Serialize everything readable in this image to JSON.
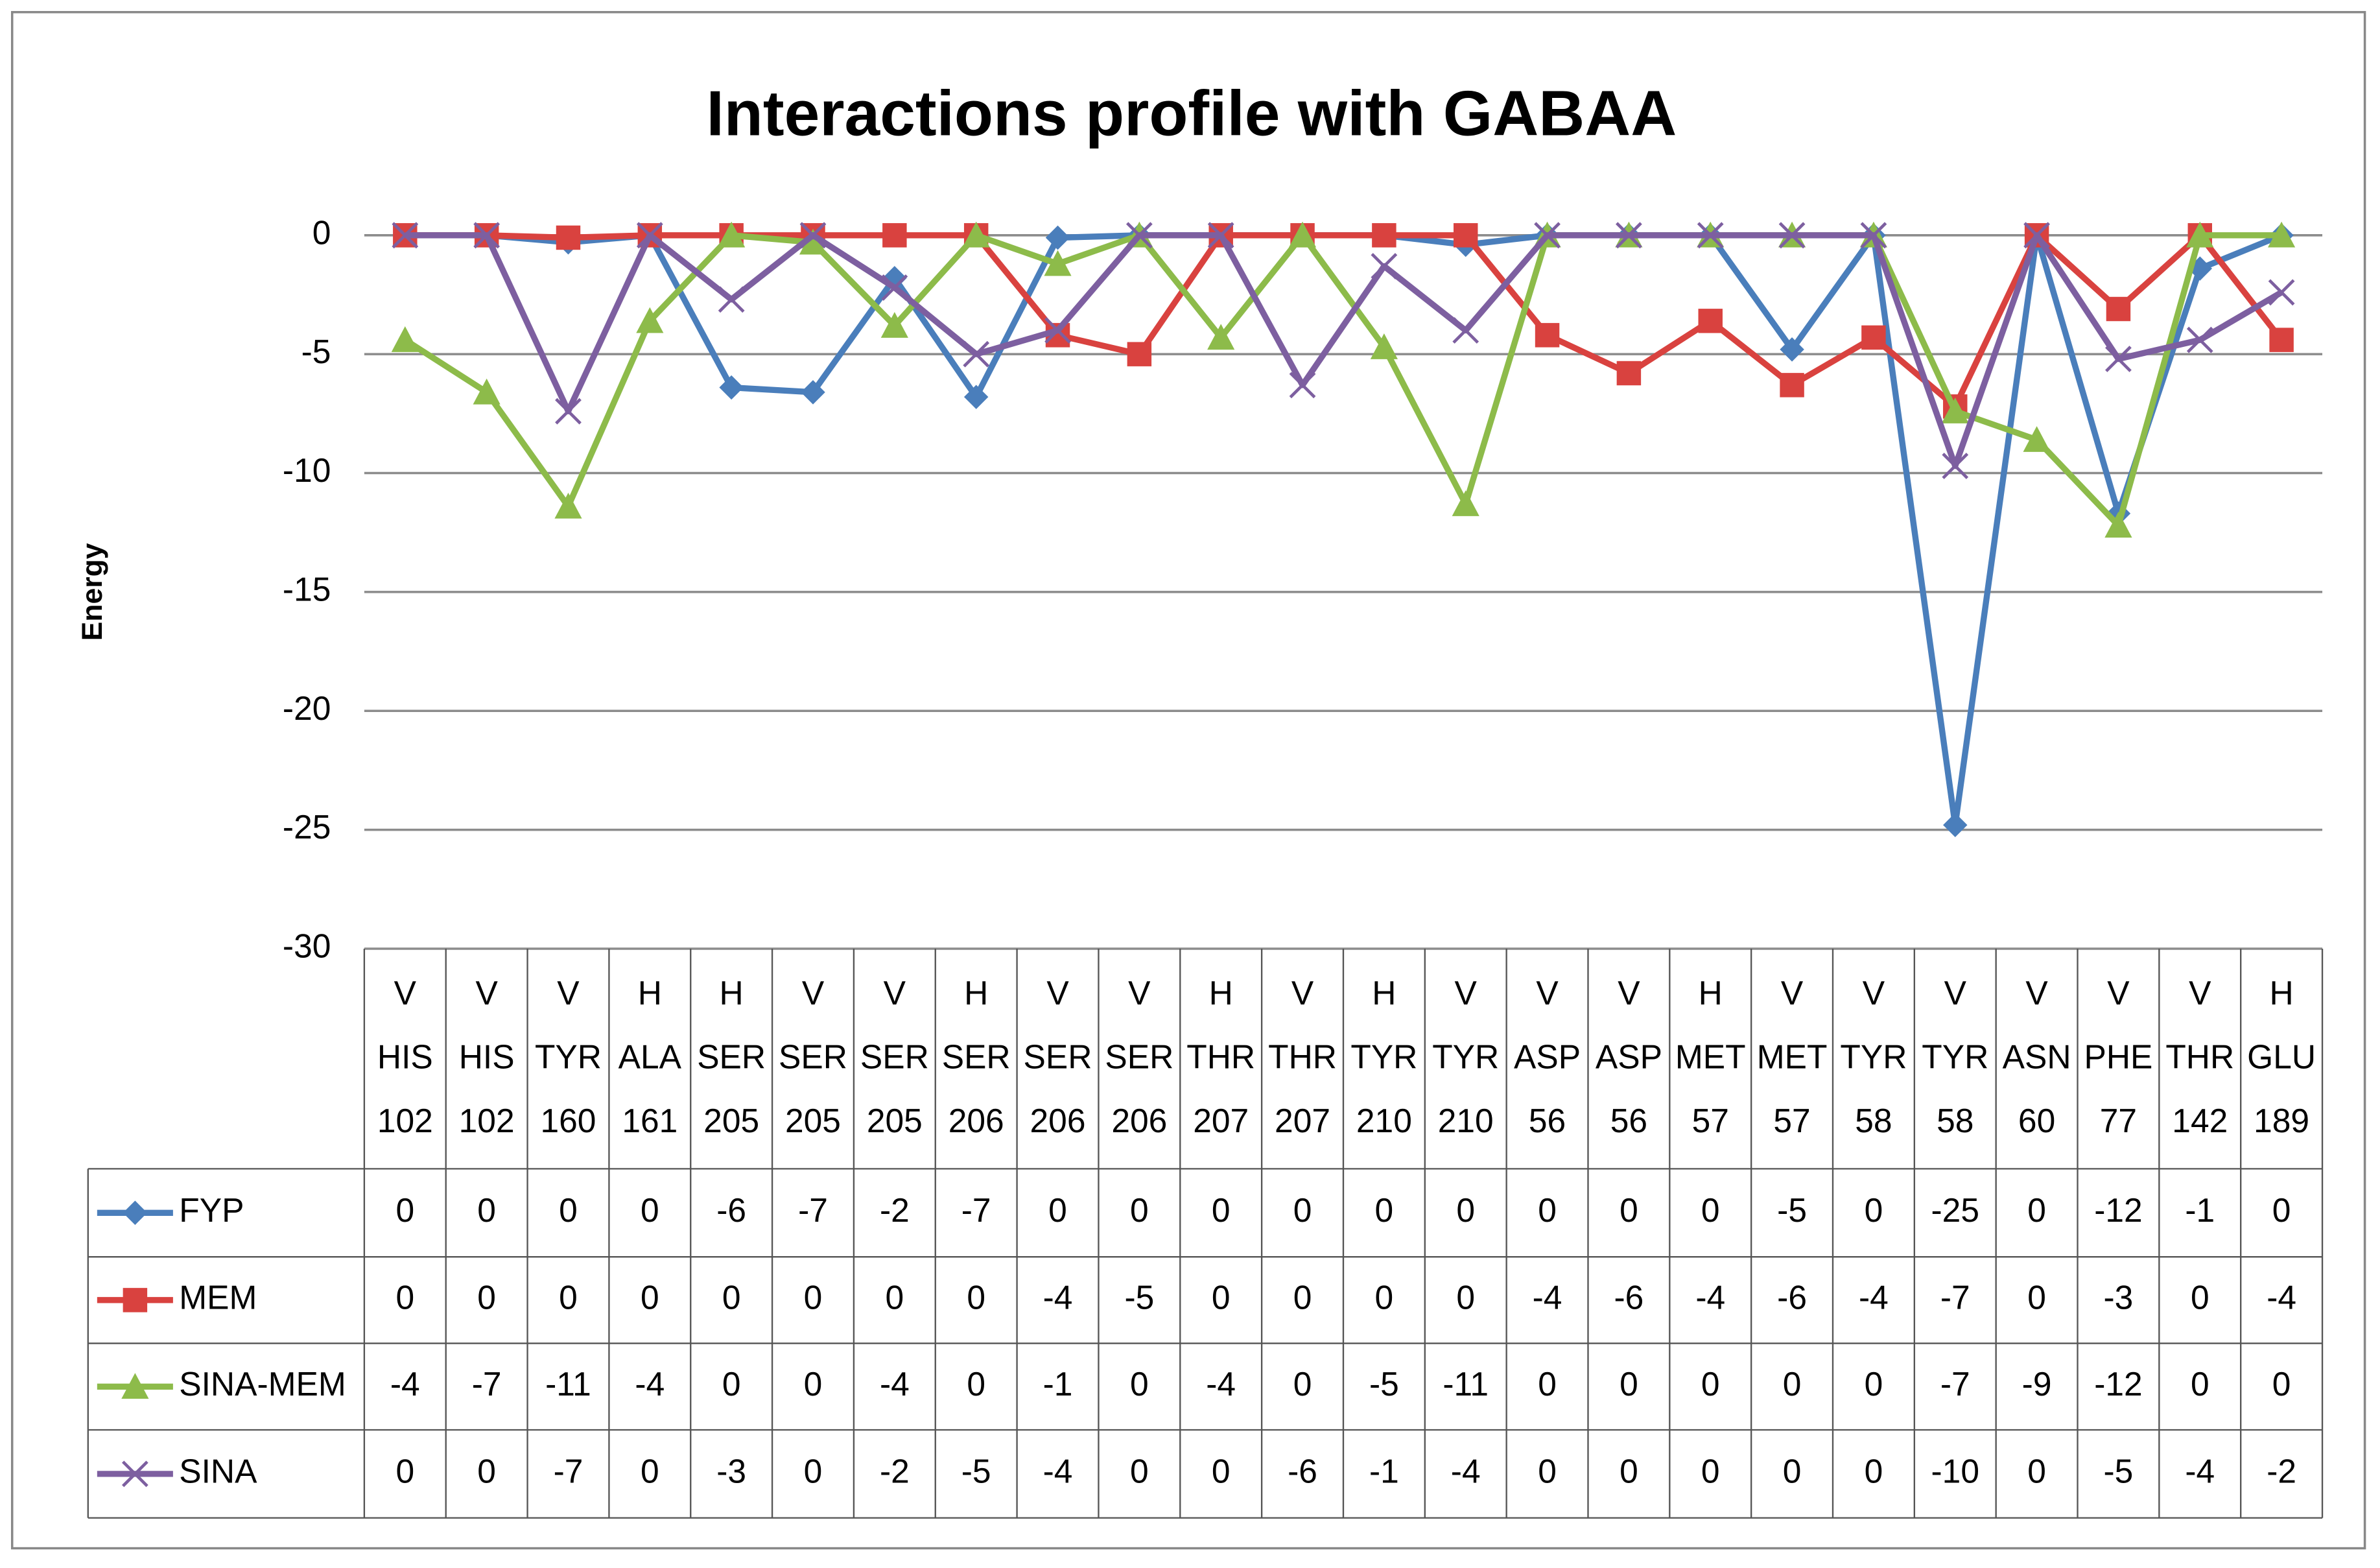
{
  "chart_data": {
    "type": "line",
    "title": "Interactions profile with GABAA",
    "y_label": "Energy",
    "categories": [
      [
        "V",
        "HIS",
        "102"
      ],
      [
        "V",
        "HIS",
        "102"
      ],
      [
        "V",
        "TYR",
        "160"
      ],
      [
        "H",
        "ALA",
        "161"
      ],
      [
        "H",
        "SER",
        "205"
      ],
      [
        "V",
        "SER",
        "205"
      ],
      [
        "V",
        "SER",
        "205"
      ],
      [
        "H",
        "SER",
        "206"
      ],
      [
        "V",
        "SER",
        "206"
      ],
      [
        "V",
        "SER",
        "206"
      ],
      [
        "H",
        "THR",
        "207"
      ],
      [
        "V",
        "THR",
        "207"
      ],
      [
        "H",
        "TYR",
        "210"
      ],
      [
        "V",
        "TYR",
        "210"
      ],
      [
        "V",
        "ASP",
        "56"
      ],
      [
        "V",
        "ASP",
        "56"
      ],
      [
        "H",
        "MET",
        "57"
      ],
      [
        "V",
        "MET",
        "57"
      ],
      [
        "V",
        "TYR",
        "58"
      ],
      [
        "V",
        "TYR",
        "58"
      ],
      [
        "V",
        "ASN",
        "60"
      ],
      [
        "V",
        "PHE",
        "77"
      ],
      [
        "V",
        "THR",
        "142"
      ],
      [
        "H",
        "GLU",
        "189"
      ]
    ],
    "series": [
      {
        "name": "FYP",
        "color": "#4a7ebb",
        "marker": "diamond",
        "values": [
          0,
          0,
          -0.3,
          0,
          -6.4,
          -6.6,
          -1.8,
          -6.8,
          -0.1,
          0,
          0,
          0,
          0,
          -0.4,
          0,
          0,
          0,
          -4.8,
          0,
          -24.8,
          0,
          -11.7,
          -1.4,
          0
        ],
        "value_labels": [
          "0",
          "0",
          "0",
          "0",
          "-6",
          "-7",
          "-2",
          "-7",
          "0",
          "0",
          "0",
          "0",
          "0",
          "0",
          "0",
          "0",
          "0",
          "-5",
          "0",
          "-25",
          "0",
          "-12",
          "-1",
          "0"
        ]
      },
      {
        "name": "MEM",
        "color": "#d9423f",
        "marker": "square",
        "values": [
          0,
          0,
          -0.1,
          0,
          0,
          0,
          0,
          0,
          -4.2,
          -5.0,
          0,
          0,
          0,
          0,
          -4.2,
          -5.8,
          -3.6,
          -6.3,
          -4.3,
          -7.2,
          0,
          -3.1,
          0,
          -4.4
        ],
        "value_labels": [
          "0",
          "0",
          "0",
          "0",
          "0",
          "0",
          "0",
          "0",
          "-4",
          "-5",
          "0",
          "0",
          "0",
          "0",
          "-4",
          "-6",
          "-4",
          "-6",
          "-4",
          "-7",
          "0",
          "-3",
          "0",
          "-4"
        ]
      },
      {
        "name": "SINA-MEM",
        "color": "#8dbb4a",
        "marker": "triangle",
        "values": [
          -4.4,
          -6.6,
          -11.4,
          -3.6,
          0,
          -0.3,
          -3.8,
          0,
          -1.2,
          0,
          -4.3,
          0,
          -4.7,
          -11.3,
          0,
          0,
          0,
          0,
          0,
          -7.4,
          -8.6,
          -12.2,
          0,
          0
        ],
        "value_labels": [
          "-4",
          "-7",
          "-11",
          "-4",
          "0",
          "0",
          "-4",
          "0",
          "-1",
          "0",
          "-4",
          "0",
          "-5",
          "-11",
          "0",
          "0",
          "0",
          "0",
          "0",
          "-7",
          "-9",
          "-12",
          "0",
          "0"
        ]
      },
      {
        "name": "SINA",
        "color": "#7d5fa0",
        "marker": "cross",
        "values": [
          0,
          0,
          -7.4,
          0,
          -2.7,
          0,
          -2.2,
          -5.0,
          -4.0,
          0,
          0,
          -6.3,
          -1.3,
          -4.0,
          0,
          0,
          0,
          0,
          0,
          -9.7,
          0,
          -5.2,
          -4.4,
          -2.4
        ],
        "value_labels": [
          "0",
          "0",
          "-7",
          "0",
          "-3",
          "0",
          "-2",
          "-5",
          "-4",
          "0",
          "0",
          "-6",
          "-1",
          "-4",
          "0",
          "0",
          "0",
          "0",
          "0",
          "-10",
          "0",
          "-5",
          "-4",
          "-2"
        ]
      }
    ],
    "ylim": [
      -30,
      0
    ],
    "yticks": [
      0,
      -5,
      -10,
      -15,
      -20,
      -25,
      -30
    ],
    "grid": true
  }
}
